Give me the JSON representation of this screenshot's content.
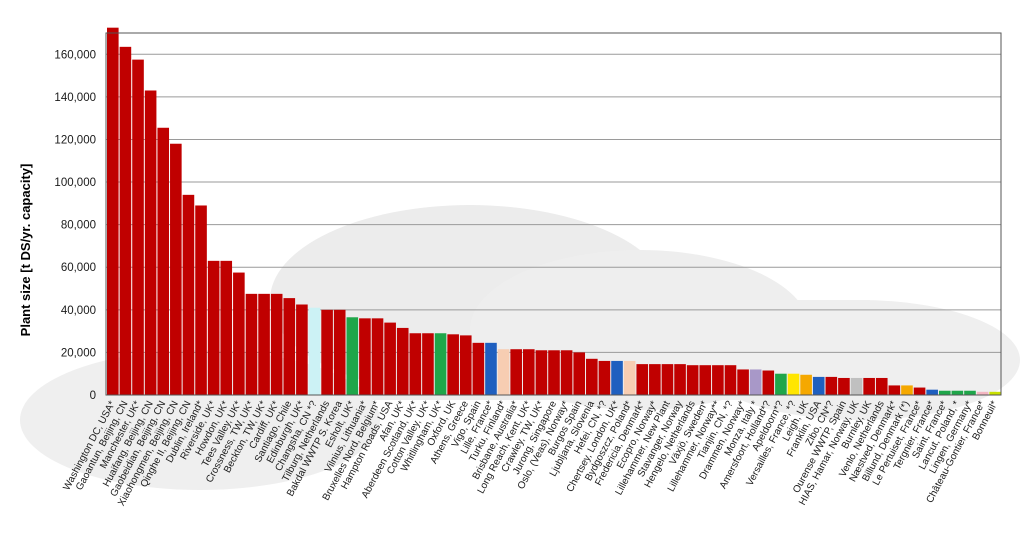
{
  "chart_data": {
    "type": "bar",
    "title": "",
    "xlabel": "",
    "ylabel": "Plant size [t DS/yr. capacity]",
    "ylim": [
      0,
      170000
    ],
    "yticks": [
      "0",
      "20,000",
      "40,000",
      "60,000",
      "80,000",
      "100,000",
      "120,000",
      "140,000",
      "160,000"
    ],
    "grid": true,
    "legend": "none",
    "colors": {
      "red": "#c00000",
      "light_blue": "#ccf2f5",
      "green": "#1fa64a",
      "blue": "#1f5fbf",
      "peach": "#f7cdb2",
      "purple": "#a898c8",
      "yellow": "#ffe600",
      "orange": "#f5a800",
      "grey": "#c0c0c0",
      "pink": "#f4b6c2",
      "lime": "#c8e000"
    },
    "categories": [
      "Washington DC, USA*",
      "Gaoantun, Beijing, CN",
      "Manchester, UK*",
      "Huaifang, Beijing, CN",
      "Gaobeidian, Beijing, CN",
      "Xiaohongmen, Beijing, CN",
      "Qinghe II, Beijing, CN",
      "Dublin, Ireland*",
      "Riverside, UK*",
      "Howdon, UK*",
      "Tees Valley, UK*",
      "Crossness, TW, UK*",
      "Beckton, TW, UK*",
      "Cardiff, UK*",
      "Santiago, Chile",
      "Edinburgh, UK*",
      "Changsha, CN *?",
      "Tilburg, Netherlands",
      "Bakdal WWTP S. Korea",
      "Esholt, UK*",
      "Vilnius, Lithuania*",
      "Bruxelles Nord, Belgium*",
      "Hampton Roads, USA",
      "Afan, UK*",
      "Aberdeen Scotland, UK*",
      "Cotton Valley, UK*",
      "Whitlingham, UK*",
      "Oxford, UK",
      "Athens, Greece",
      "Vigo, Spain",
      "Lille, France*",
      "Turku, Finland*",
      "Brisbane, Australia*",
      "Long Reach, Kent, UK*",
      "Crawley, TW, UK*",
      "Jurong, Singapore",
      "Oslo, (Veas), Norway*",
      "Burgos Spain",
      "Ljubljana, Slovenia",
      "Hefei, CN, *?",
      "Chertsey, London, UK*",
      "Bydgoszcz, Poland*",
      "Fredericia, Denmark*",
      "Ecopro, Norway*",
      "Lillehammer, New Plant",
      "Stavanger, Norway",
      "Hengelo, Netherlands",
      "Växjö, Sweden*",
      "Lillehammer, Norway**",
      "Tianjin, CN, *?",
      "Drammen, Norway*",
      "Monza, Italy *",
      "Amersfoort, Holland*?",
      "Apeldoorn*?",
      "Versailles, France, *?",
      "Leigh, UK",
      "Franklin, USA",
      "Zibo, CN*?",
      "Ourense WWTP, Spain",
      "HIAS, Hamar, Norway, UK",
      "Burnley, UK",
      "Venlo, Netherlands",
      "Næstved, Denmark*",
      "Billund, Denmark (*)",
      "Le Pertuiset, France*",
      "Tergnier, France*",
      "Saint, France*",
      "Lancut, Poland, *",
      "Lingen, Germany*",
      "Château-Gontier, France*",
      "Bonneuil*"
    ],
    "values": [
      172500,
      163500,
      157500,
      143000,
      125500,
      118000,
      94000,
      89000,
      63000,
      63000,
      57500,
      47500,
      47500,
      47500,
      45500,
      42500,
      41000,
      40000,
      40000,
      36500,
      36000,
      36000,
      34000,
      31500,
      29000,
      29000,
      29000,
      28500,
      28000,
      24500,
      24500,
      21500,
      21500,
      21500,
      21000,
      21000,
      21000,
      20000,
      17000,
      16000,
      16000,
      16000,
      14500,
      14500,
      14500,
      14500,
      14000,
      14000,
      14000,
      14000,
      12000,
      12000,
      11500,
      10000,
      10000,
      9500,
      8500,
      8500,
      8000,
      8000,
      8000,
      8000,
      4500,
      4500,
      3500,
      2500,
      2000,
      2000,
      2000,
      1500,
      1500
    ],
    "bar_colors": [
      "red",
      "red",
      "red",
      "red",
      "red",
      "red",
      "red",
      "red",
      "red",
      "red",
      "red",
      "red",
      "red",
      "red",
      "red",
      "red",
      "light_blue",
      "red",
      "red",
      "green",
      "red",
      "red",
      "red",
      "red",
      "red",
      "red",
      "green",
      "red",
      "red",
      "red",
      "blue",
      "peach",
      "red",
      "red",
      "red",
      "red",
      "red",
      "red",
      "red",
      "red",
      "blue",
      "peach",
      "red",
      "red",
      "red",
      "red",
      "red",
      "red",
      "red",
      "red",
      "red",
      "purple",
      "red",
      "green",
      "yellow",
      "orange",
      "blue",
      "red",
      "red",
      "grey",
      "red",
      "red",
      "red",
      "orange",
      "red",
      "blue",
      "green",
      "green",
      "green",
      "pink",
      "lime"
    ]
  }
}
